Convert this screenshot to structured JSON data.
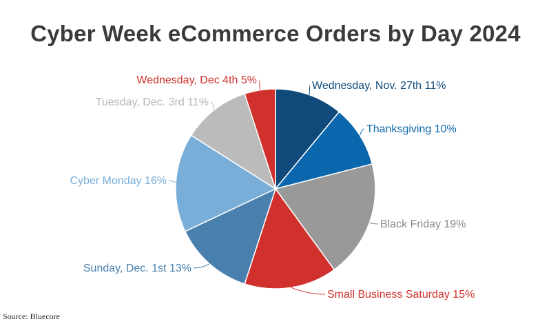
{
  "chart_data": {
    "type": "pie",
    "title": "Cyber Week eCommerce Orders by Day 2024",
    "slices": [
      {
        "label": "Wednesday, Nov. 27th 11%",
        "value": 11,
        "color": "#0f4a7a",
        "label_color": "#0f4a7a"
      },
      {
        "label": "Thanksgiving 10%",
        "value": 10,
        "color": "#0b67ad",
        "label_color": "#0b67ad"
      },
      {
        "label": "Black Friday 19%",
        "value": 19,
        "color": "#999999",
        "label_color": "#8a8a8a"
      },
      {
        "label": "Small Business Saturday 15%",
        "value": 15,
        "color": "#d0312d",
        "label_color": "#d0312d"
      },
      {
        "label": "Sunday, Dec. 1st 13%",
        "value": 13,
        "color": "#4a80ad",
        "label_color": "#4a80ad"
      },
      {
        "label": "Cyber Monday 16%",
        "value": 16,
        "color": "#78aed8",
        "label_color": "#78aed8"
      },
      {
        "label": "Tuesday, Dec. 3rd 11%",
        "value": 11,
        "color": "#bbbbbb",
        "label_color": "#b5b5b5"
      },
      {
        "label": "Wednesday, Dec 4th 5%",
        "value": 5,
        "color": "#d0312d",
        "label_color": "#d0312d"
      }
    ],
    "legend": "none"
  },
  "source": "Source: Bluecore"
}
